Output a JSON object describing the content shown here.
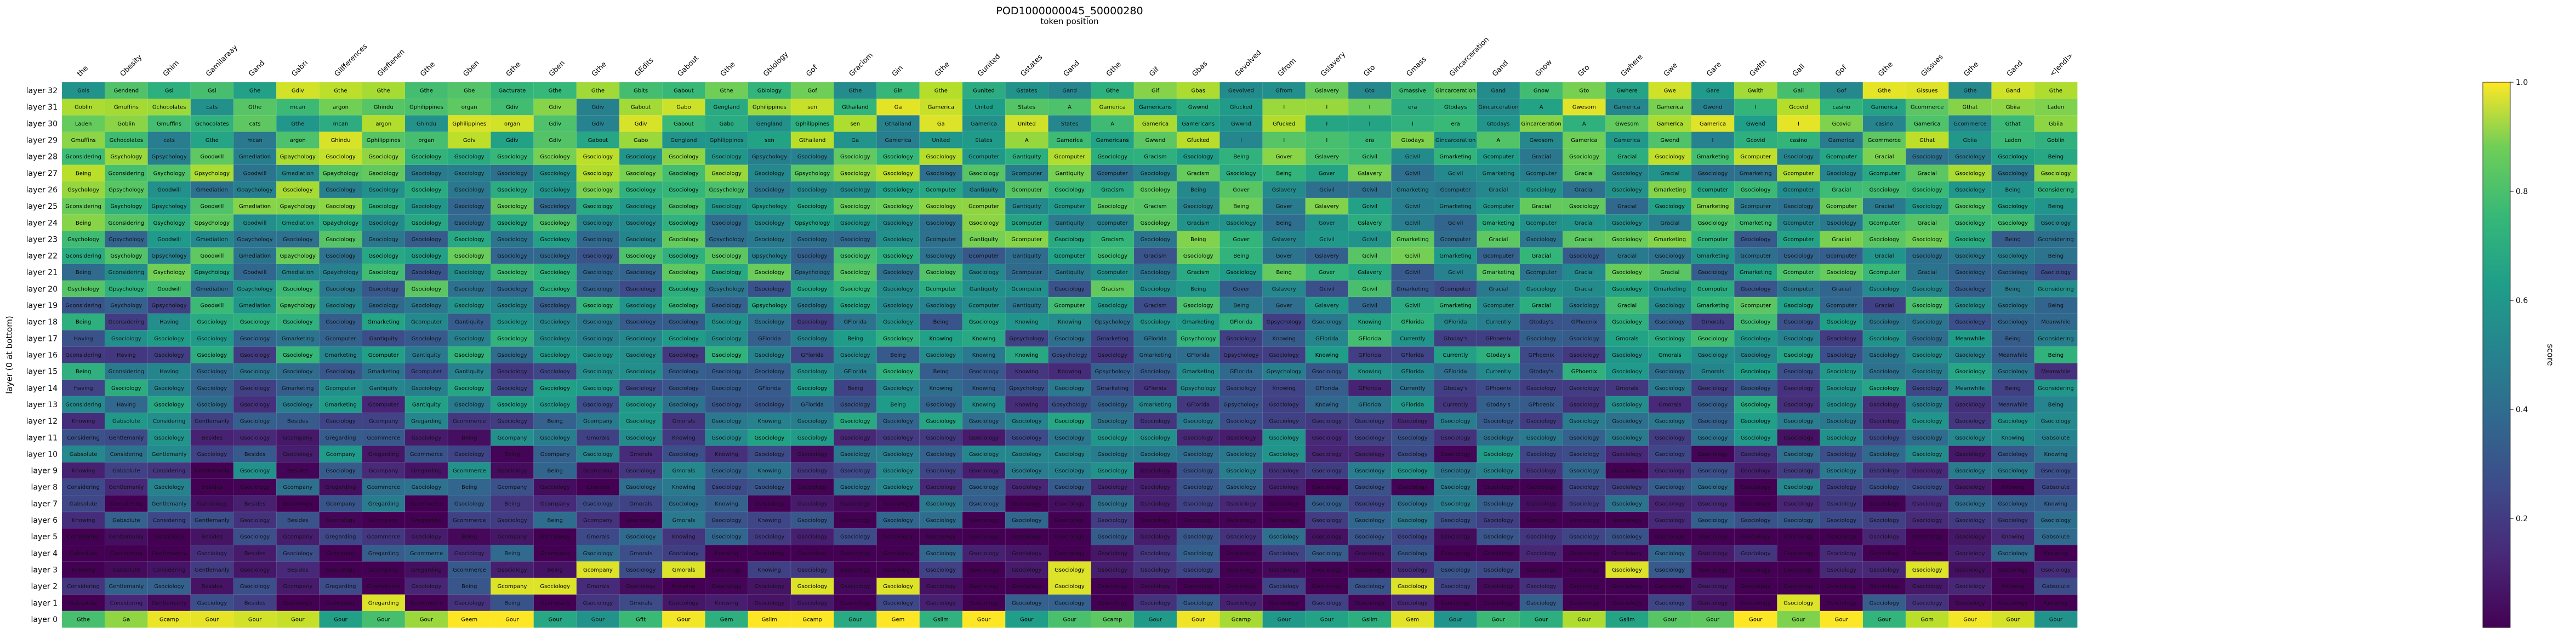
{
  "chart_data": {
    "type": "heatmap",
    "title": "POD1000000045_50000280",
    "subtitle": "token position",
    "ylabel": "layer (0 at bottom)",
    "colorbar_label": "score",
    "colorbar_range": [
      0.0,
      1.0
    ],
    "colorbar_ticks": [
      "0.2",
      "0.4",
      "0.6",
      "0.8",
      "1.0"
    ],
    "colormap": "viridis",
    "columns": [
      "the",
      "Obesity",
      "Ghim",
      "Gamilaraay",
      "Gand",
      "Gabri",
      "Gilfferences",
      "Gleftenen",
      "Gthe",
      "Gben",
      "Gthe",
      "Gben",
      "Gthe",
      "GEdits",
      "Gabout",
      "Gthe",
      "Gbiology",
      "Gof",
      "Graciom",
      "Gin",
      "Gthe",
      "Gunited",
      "Gstates",
      "Gand",
      "Gthe",
      "Gif",
      "Gbas",
      "Gevolved",
      "Gfrom",
      "Gslavery",
      "Gto",
      "Gmass",
      "Gincarceration",
      "Gand",
      "Gnow",
      "Gto",
      "Gwhere",
      "Gwe",
      "Gare",
      "Gwith",
      "Gall",
      "Gof",
      "Gthe",
      "Gissues",
      "Gthe",
      "Gand",
      "<|endl>"
    ],
    "rows": [
      "layer 32",
      "layer 31",
      "layer 30",
      "layer 29",
      "layer 28",
      "layer 27",
      "layer 26",
      "layer 25",
      "layer 24",
      "layer 23",
      "layer 22",
      "layer 21",
      "layer 20",
      "layer 19",
      "layer 18",
      "layer 17",
      "layer 16",
      "layer 15",
      "layer 14",
      "layer 13",
      "layer 12",
      "layer 11",
      "layer 10",
      "layer 9",
      "layer 8",
      "layer 7",
      "layer 6",
      "layer 5",
      "layer 4",
      "layer 3",
      "layer 2",
      "layer 1",
      "layer 0"
    ],
    "row_label_sets": {
      "top": [
        "Gois",
        "Gendend",
        "Gsi",
        "Gsi",
        "Ghe",
        "Gdiv",
        "Gthe",
        "Gthe",
        "Gthe",
        "Gbe",
        "Gacturate",
        "Gthe",
        "Gthe",
        "Gbits",
        "Gabout",
        "Gthe",
        "Gbiology",
        "Gof",
        "Gthe",
        "Gin",
        "Gthe",
        "Gunited",
        "Gstates",
        "Gand",
        "Gthe",
        "Gif",
        "Gbas",
        "Gevolved",
        "Gfrom",
        "Gslavery",
        "Gto",
        "Gmassive",
        "Gincarceration",
        "Gand",
        "Gnow",
        "Gto",
        "Gwhere",
        "Gwe",
        "Gare",
        "Gwith",
        "Gall",
        "Gof",
        "Gthe",
        "Gissues",
        "Gthe",
        "Gand",
        "Gthe"
      ],
      "late": [
        "Laden",
        "Goblin",
        "Gmuffins",
        "Gchocolates",
        "cats",
        "Gthe",
        "mcan",
        "argon",
        "Ghindu",
        "Gphilippines",
        "organ",
        "Gdiv",
        "Gdiv",
        "Gdiv",
        "Gabout",
        "Gabo",
        "Gengland",
        "Gphilippines",
        "sen",
        "Gthailand",
        "Ga",
        "Gamerica",
        "United",
        "States",
        "A",
        "Gamerica",
        "Gamericans",
        "Gwwnd",
        "Gfucked",
        "I",
        "I",
        "I",
        "era",
        "Gtodays",
        "Gincarceration",
        "A",
        "Gwesom",
        "Gamerica",
        "Gamerica",
        "Gwend",
        "I",
        "Gcovid",
        "casino",
        "Gamerica",
        "Gcommerce",
        "Gthat",
        "Gbiia"
      ],
      "mid": [
        "Being",
        "Gconsidering",
        "Gsychology",
        "Gpsychology",
        "Goodwill",
        "Gmediation",
        "Gpaychology",
        "Gsociology",
        "Gsociology",
        "Gsociology",
        "Gsociology",
        "Gsociology",
        "Gsociology",
        "Gsociology",
        "Gsociology",
        "Gsociology",
        "Gsociology",
        "Gpsychology",
        "Gsociology",
        "Gsociology",
        "Gsociology",
        "Gsociology",
        "Gcomputer",
        "Gantiquity",
        "Gcomputer",
        "Gsociology",
        "Gracism",
        "Gsociology",
        "Being",
        "Gover",
        "Gslavery",
        "Gcivil",
        "Gcivil",
        "Gmarketing",
        "Gcomputer",
        "Gracial",
        "Gsociology",
        "Gracial",
        "Gsociology",
        "Gmarketing",
        "Gcomputer",
        "Gsociology",
        "Gcomputer",
        "Gracial",
        "Gsociology",
        "Gsociology",
        "Gsociology"
      ],
      "lowmid": [
        "Being",
        "Gconsidering",
        "Having",
        "Gsociology",
        "Gsociology",
        "Gsociology",
        "Gsociology",
        "Gmarketing",
        "Gcomputer",
        "Gantiquity",
        "Gsociology",
        "Gsociology",
        "Gsociology",
        "Gsociology",
        "Gsociology",
        "Gsociology",
        "Gsociology",
        "Gsociology",
        "GFlorida",
        "Gsociology",
        "Being",
        "Gsociology",
        "Knowing",
        "Knowing",
        "Gpsychology",
        "Gsociology",
        "Gmarketing",
        "GFlorida",
        "Gpsychology",
        "Gsociology",
        "Knowing",
        "GFlorida",
        "GFlorida",
        "Currently",
        "Gtoday's",
        "GPhoenix",
        "Gsociology",
        "Gsociology",
        "Gmorals",
        "Gsociology",
        "Gsociology",
        "Gsociology",
        "Gsociology",
        "Gsociology",
        "Gsociology",
        "Gsociology",
        "Meanwhile"
      ],
      "low": [
        "Knowing",
        "Gabsolute",
        "Considering",
        "Gentlemanly",
        "Gsociology",
        "Besides",
        "Gsociology",
        "Gcompany",
        "Gregarding",
        "Gcommerce",
        "Gsociology",
        "Being",
        "Gcompany",
        "Gsociology",
        "Gmorals",
        "Gsociology",
        "Knowing",
        "Gsociology",
        "Gsociology",
        "Gsociology",
        "Gsociology",
        "Gsociology",
        "Gsociology",
        "Gsociology",
        "Gsociology",
        "Gsociology",
        "Gsociology",
        "Gsociology",
        "Gsociology",
        "Gsociology",
        "Gsociology",
        "Gsociology",
        "Gsociology",
        "Gsociology",
        "Gsociology",
        "Gsociology",
        "Gsociology",
        "Gsociology",
        "Gsociology",
        "Gsociology",
        "Gsociology",
        "Gsociology",
        "Gsociology",
        "Gsociology",
        "Gsociology",
        "Gsociology",
        "Gsociology"
      ],
      "bottom": [
        "Gthe",
        "Ga",
        "Gcamp",
        "Gour",
        "Gour",
        "Gour",
        "Gour",
        "Gour",
        "Gour",
        "Geem",
        "Gour",
        "Gour",
        "Gour",
        "Gfit",
        "Gour",
        "Gem",
        "Gslim",
        "Gcamp",
        "Gour",
        "Gem",
        "Gslim",
        "Gour",
        "Gour",
        "Gour",
        "Gcamp",
        "Gour",
        "Gour",
        "Gcamp",
        "Gour",
        "Gour",
        "Gslim",
        "Gem",
        "Gour",
        "Gour",
        "Gour",
        "Gour",
        "Gslim",
        "Gour",
        "Gour",
        "Gour",
        "Gour",
        "Gour",
        "Gour",
        "Gom",
        "Gour",
        "Gour",
        "Gour"
      ]
    }
  }
}
